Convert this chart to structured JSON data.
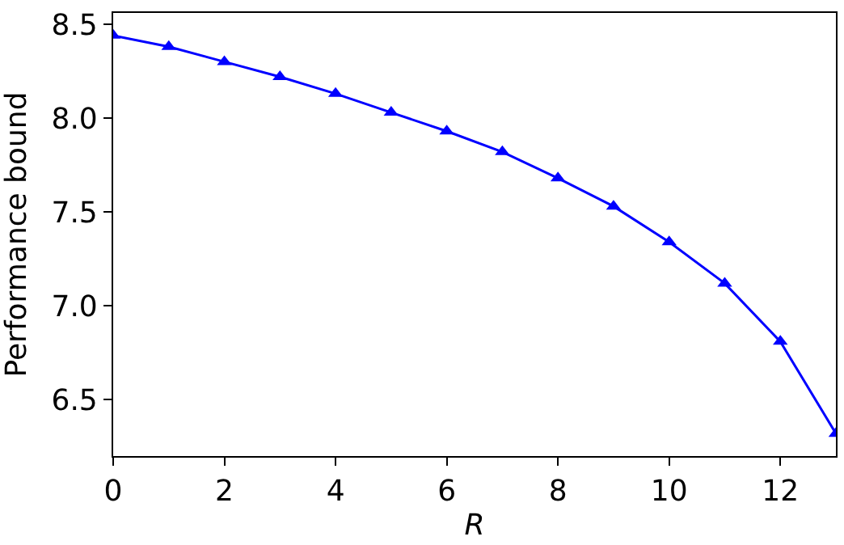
{
  "chart_data": {
    "type": "line",
    "xlabel": "R",
    "ylabel": "Performance bound",
    "x": [
      0,
      1,
      2,
      3,
      4,
      5,
      6,
      7,
      8,
      9,
      10,
      11,
      12,
      13
    ],
    "series": [
      {
        "color": "#0000ff",
        "values": [
          8.44,
          8.38,
          8.3,
          8.22,
          8.13,
          8.03,
          7.93,
          7.82,
          7.68,
          7.53,
          7.34,
          7.12,
          6.81,
          6.32
        ]
      }
    ],
    "xlim": [
      0,
      13
    ],
    "xticks": [
      0,
      2,
      4,
      6,
      8,
      10,
      12
    ],
    "ylim": [
      6.2,
      8.56
    ],
    "yticks": [
      6.5,
      {
        "value": 7,
        "label": "7.0"
      },
      7.5,
      {
        "value": 8,
        "label": "8.0"
      },
      8.5
    ],
    "marker": "triangle",
    "line_style": "solid"
  }
}
